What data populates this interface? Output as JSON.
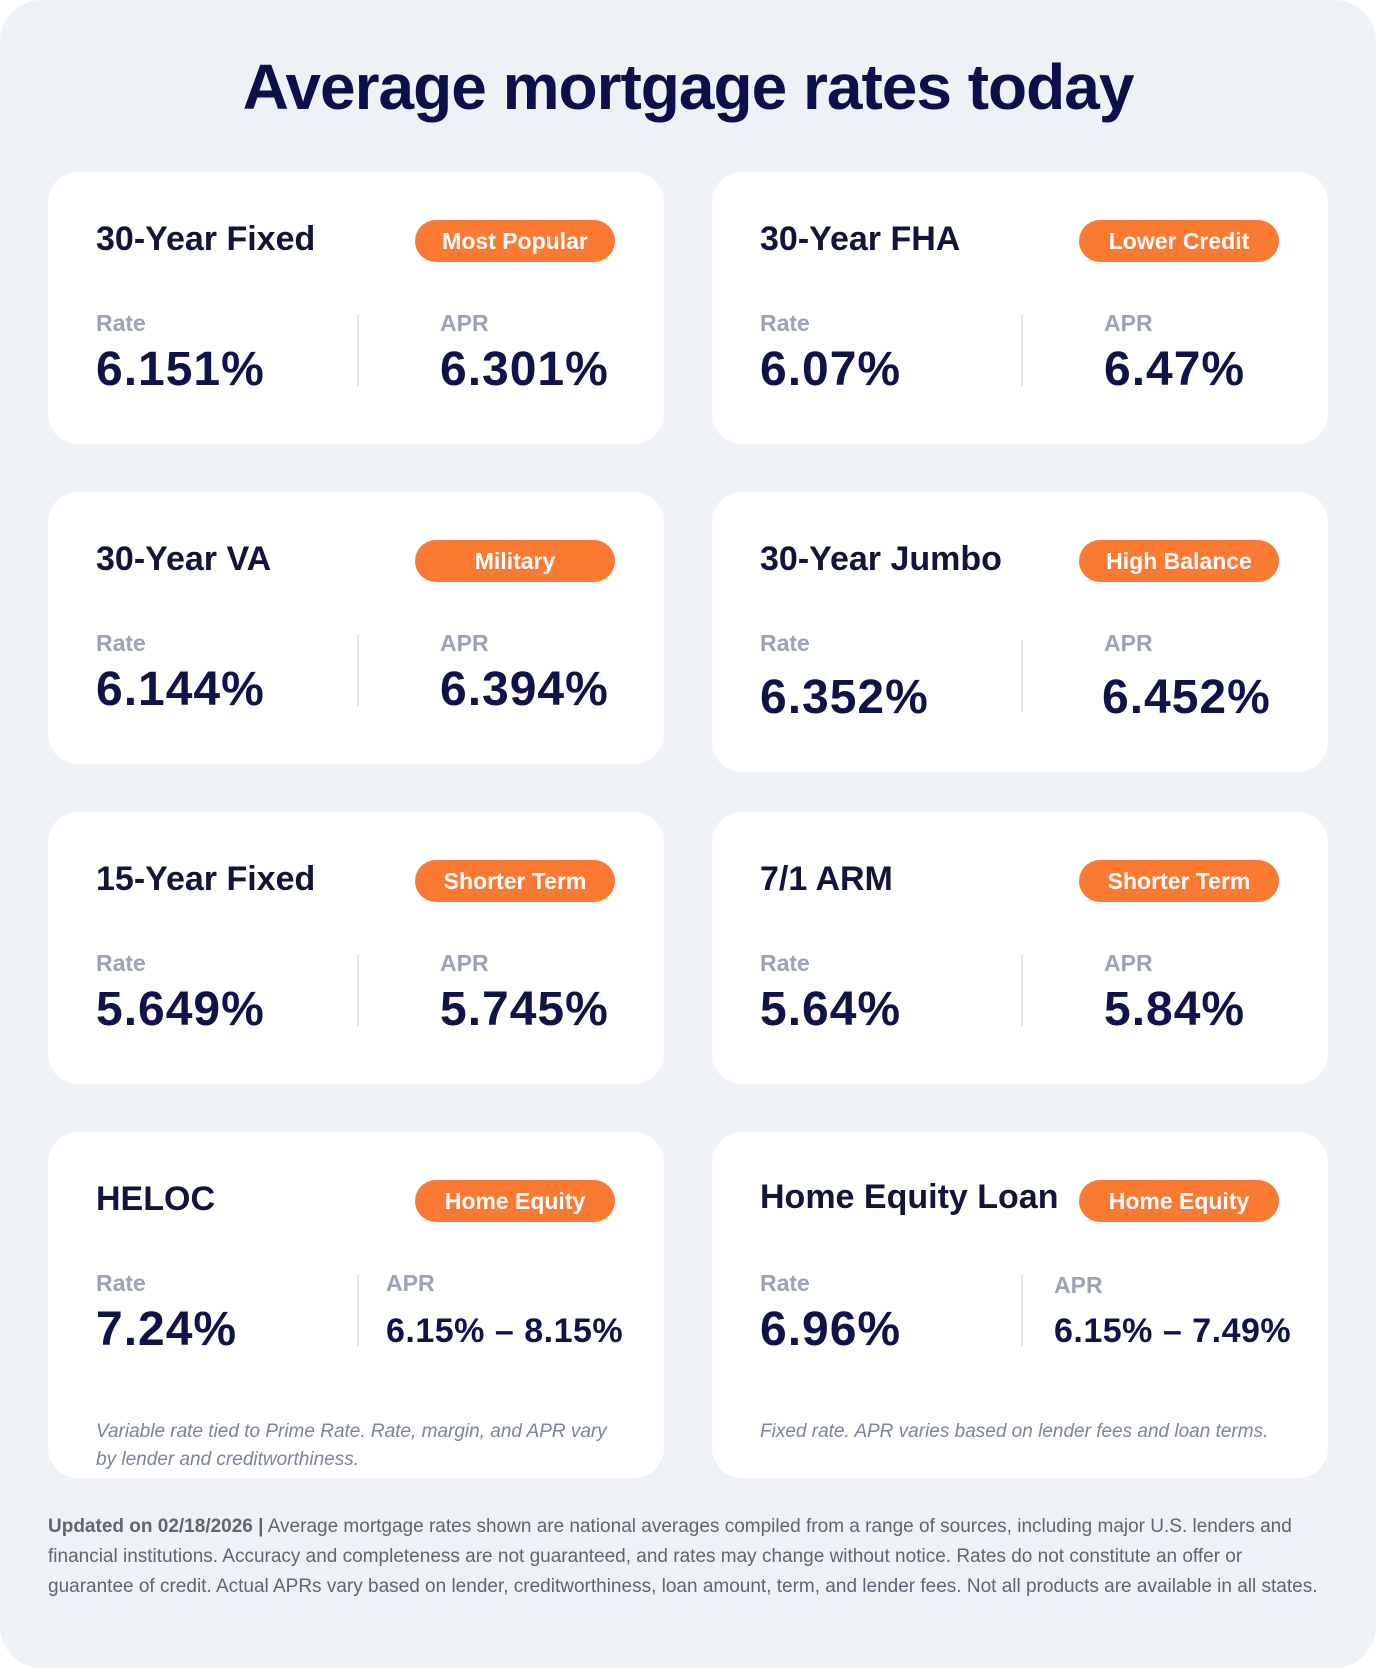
{
  "title": "Average mortgage rates today",
  "rate_label": "Rate",
  "apr_label": "APR",
  "cards": [
    {
      "name": "30-Year Fixed",
      "badge": "Most Popular",
      "rate": "6.151%",
      "apr": "6.301%"
    },
    {
      "name": "30-Year FHA",
      "badge": "Lower Credit",
      "rate": "6.07%",
      "apr": "6.47%"
    },
    {
      "name": "30-Year VA",
      "badge": "Military",
      "rate": "6.144%",
      "apr": "6.394%"
    },
    {
      "name": "30-Year Jumbo",
      "badge": "High Balance",
      "rate": "6.352%",
      "apr": "6.452%"
    },
    {
      "name": "15-Year Fixed",
      "badge": "Shorter Term",
      "rate": "5.649%",
      "apr": "5.745%"
    },
    {
      "name": "7/1 ARM",
      "badge": "Shorter Term",
      "rate": "5.64%",
      "apr": "5.84%"
    },
    {
      "name": "HELOC",
      "badge": "Home Equity",
      "rate": "7.24%",
      "apr": "6.15% – 8.15%",
      "note": "Variable rate tied to Prime Rate. Rate, margin, and APR vary by lender and creditworthiness."
    },
    {
      "name": "Home Equity Loan",
      "badge": "Home Equity",
      "rate": "6.96%",
      "apr": "6.15% – 7.49%",
      "note": "Fixed rate. APR varies based on lender fees and loan terms."
    }
  ],
  "footer": {
    "updated": "Updated on 02/18/2026",
    "separator": "|",
    "text": "Average mortgage rates shown are national averages compiled from a range of sources, including major U.S. lenders and financial institutions. Accuracy and completeness are not guaranteed, and rates may change without notice. Rates do not constitute an offer or guarantee of credit. Actual APRs vary based on lender, creditworthiness, loan amount, term, and lender fees. Not all products are available in all states."
  },
  "colors": {
    "background": "#eef1f5",
    "card": "#ffffff",
    "badge": "#fb7a33",
    "heading": "#0d0f4a",
    "label": "#9aa4b4"
  }
}
